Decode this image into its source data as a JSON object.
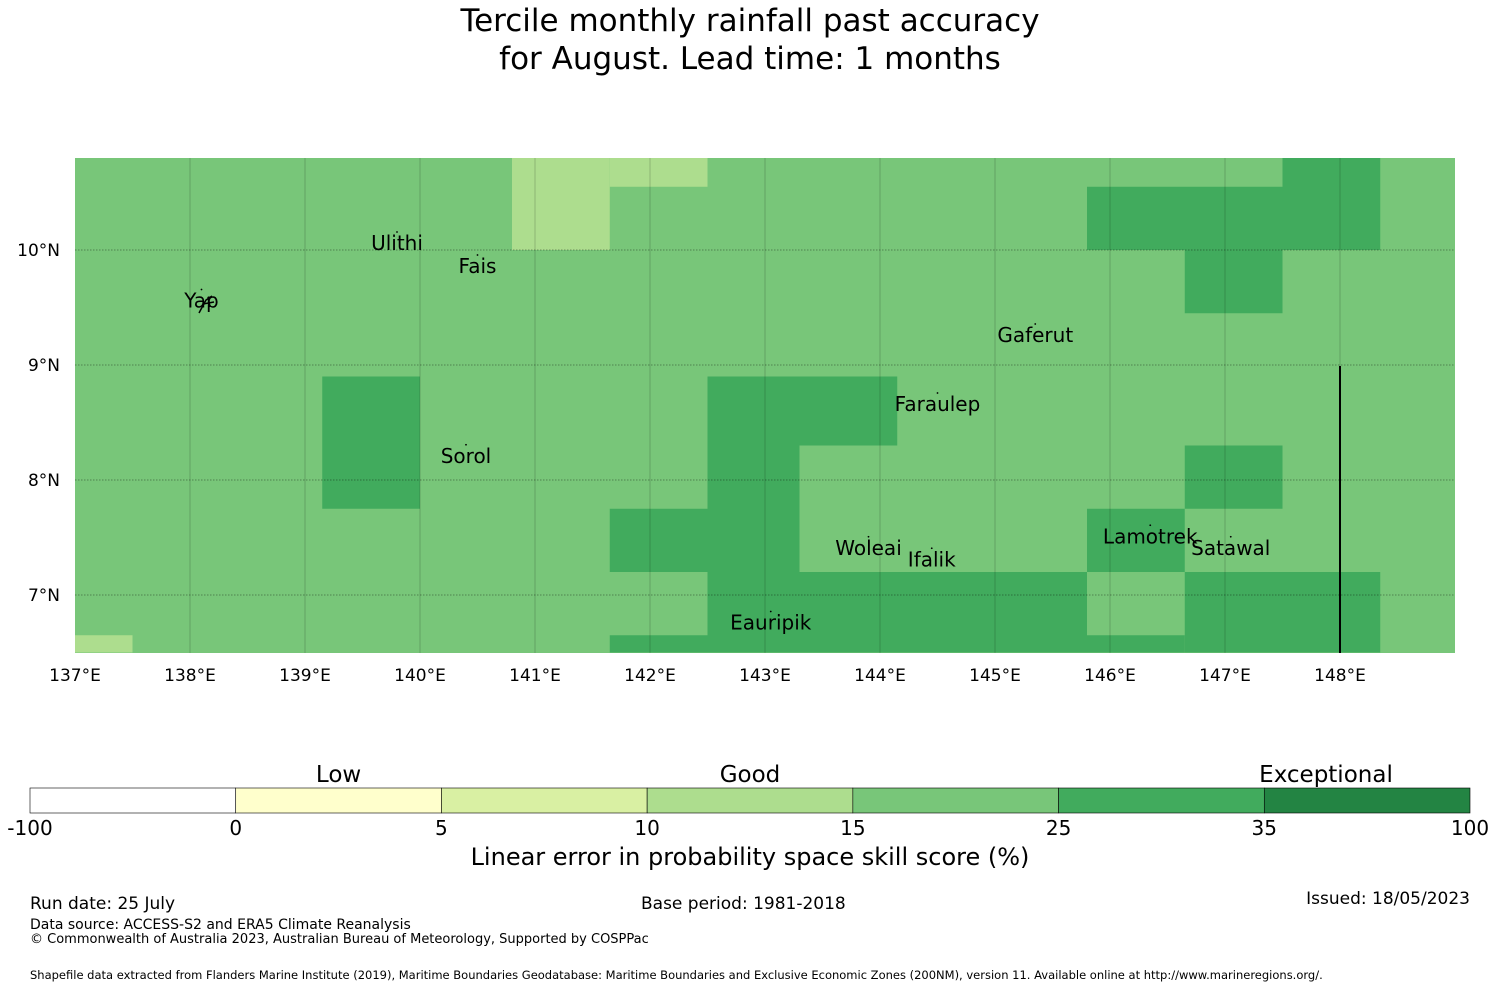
{
  "title": {
    "line1": "Tercile monthly rainfall past accuracy",
    "line2": "for August. Lead time: 1 months"
  },
  "map": {
    "lon_labels": [
      "137°E",
      "138°E",
      "139°E",
      "140°E",
      "141°E",
      "142°E",
      "143°E",
      "144°E",
      "145°E",
      "146°E",
      "147°E",
      "148°E"
    ],
    "lat_labels": [
      "10°N",
      "9°N",
      "8°N",
      "7°N"
    ],
    "places": [
      {
        "name": "Ulithi",
        "lon": 139.8,
        "lat": 10.0
      },
      {
        "name": "Fais",
        "lon": 140.5,
        "lat": 9.8
      },
      {
        "name": "Yap",
        "lon": 138.1,
        "lat": 9.5
      },
      {
        "name": "Gaferut",
        "lon": 145.35,
        "lat": 9.2
      },
      {
        "name": "Faraulep",
        "lon": 144.5,
        "lat": 8.6
      },
      {
        "name": "Sorol",
        "lon": 140.4,
        "lat": 8.15
      },
      {
        "name": "Woleai",
        "lon": 143.9,
        "lat": 7.35
      },
      {
        "name": "Ifalik",
        "lon": 144.45,
        "lat": 7.25
      },
      {
        "name": "Lamotrek",
        "lon": 146.35,
        "lat": 7.45
      },
      {
        "name": "Satawal",
        "lon": 147.05,
        "lat": 7.35
      },
      {
        "name": "Eauripik",
        "lon": 143.05,
        "lat": 6.7
      }
    ],
    "grid_cells": [
      {
        "lon0": 140.8,
        "lon1": 141.65,
        "lat0": 10.0,
        "lat1": 10.8,
        "cat": "10-15"
      },
      {
        "lon0": 141.65,
        "lon1": 142.5,
        "lat0": 10.55,
        "lat1": 10.8,
        "cat": "10-15"
      },
      {
        "lon0": 145.8,
        "lon1": 147.5,
        "lat0": 10.0,
        "lat1": 10.55,
        "cat": "25-35"
      },
      {
        "lon0": 147.5,
        "lon1": 148.35,
        "lat0": 10.0,
        "lat1": 10.8,
        "cat": "25-35"
      },
      {
        "lon0": 146.65,
        "lon1": 147.5,
        "lat0": 9.45,
        "lat1": 10.0,
        "cat": "25-35"
      },
      {
        "lon0": 139.15,
        "lon1": 140.0,
        "lat0": 7.75,
        "lat1": 8.9,
        "cat": "25-35"
      },
      {
        "lon0": 142.5,
        "lon1": 144.15,
        "lat0": 8.3,
        "lat1": 8.9,
        "cat": "25-35"
      },
      {
        "lon0": 142.5,
        "lon1": 143.3,
        "lat0": 7.2,
        "lat1": 8.3,
        "cat": "25-35"
      },
      {
        "lon0": 141.65,
        "lon1": 142.5,
        "lat0": 7.2,
        "lat1": 7.75,
        "cat": "25-35"
      },
      {
        "lon0": 146.65,
        "lon1": 147.5,
        "lat0": 7.75,
        "lat1": 8.3,
        "cat": "25-35"
      },
      {
        "lon0": 145.8,
        "lon1": 146.65,
        "lat0": 7.2,
        "lat1": 7.75,
        "cat": "25-35"
      },
      {
        "lon0": 142.5,
        "lon1": 145.8,
        "lat0": 6.5,
        "lat1": 7.2,
        "cat": "25-35"
      },
      {
        "lon0": 141.65,
        "lon1": 142.5,
        "lat0": 6.5,
        "lat1": 6.65,
        "cat": "25-35"
      },
      {
        "lon0": 145.8,
        "lon1": 146.65,
        "lat0": 6.5,
        "lat1": 6.65,
        "cat": "25-35"
      },
      {
        "lon0": 146.65,
        "lon1": 148.35,
        "lat0": 6.5,
        "lat1": 7.2,
        "cat": "25-35"
      },
      {
        "lon0": 137.0,
        "lon1": 137.5,
        "lat0": 6.5,
        "lat1": 6.65,
        "cat": "10-15"
      }
    ],
    "default_cat": "15-25"
  },
  "colorbar": {
    "categories": [
      {
        "range": "-100-0",
        "color": "#ffffff"
      },
      {
        "range": "0-5",
        "color": "#ffffcc"
      },
      {
        "range": "5-10",
        "color": "#d9f0a3"
      },
      {
        "range": "10-15",
        "color": "#addd8e"
      },
      {
        "range": "15-25",
        "color": "#78c679"
      },
      {
        "range": "25-35",
        "color": "#41ab5d"
      },
      {
        "range": "35-100",
        "color": "#238443"
      }
    ],
    "ticks": [
      "-100",
      "0",
      "5",
      "10",
      "15",
      "25",
      "35",
      "100"
    ],
    "category_labels": [
      "Low",
      "Good",
      "Exceptional"
    ],
    "title": "Linear error in probability space skill score (%)"
  },
  "footer": {
    "run_date": "Run date: 25 July",
    "base_period": "Base period: 1981-2018",
    "issued": "Issued: 18/05/2023",
    "data_source": "Data source: ACCESS-S2 and ERA5 Climate Reanalysis",
    "copyright": "© Commonwealth of Australia 2023, Australian Bureau of Meteorology, Supported by COSPPac",
    "shapefile": "Shapefile data extracted from Flanders Marine Institute (2019), Maritime Boundaries Geodatabase: Maritime Boundaries and Exclusive Economic Zones (200NM), version 11. Available online at http://www.marineregions.org/."
  }
}
